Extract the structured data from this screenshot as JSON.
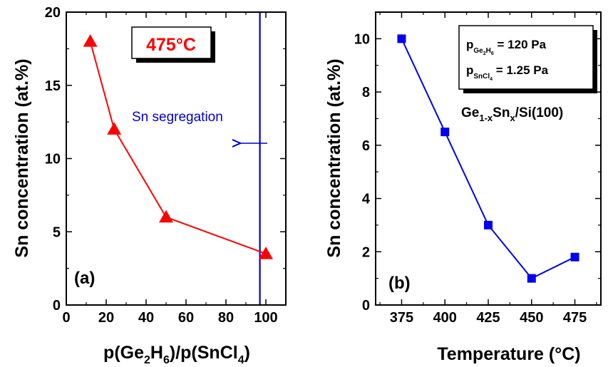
{
  "chart_data": [
    {
      "type": "line",
      "panel_label": "(a)",
      "xlabel": "p(Ge2H6)/p(SnCl4)",
      "ylabel": "Sn concentration (at.%)",
      "xlim": [
        0,
        110
      ],
      "ylim": [
        0,
        20
      ],
      "x_ticks": [
        "0",
        "20",
        "40",
        "60",
        "80",
        "100"
      ],
      "x_tick_values": [
        0,
        20,
        40,
        60,
        80,
        100
      ],
      "y_ticks": [
        "0",
        "5",
        "10",
        "15",
        "20"
      ],
      "y_tick_values": [
        0,
        5,
        10,
        15,
        20
      ],
      "series": [
        {
          "x": [
            12,
            24,
            50,
            100
          ],
          "y": [
            18,
            12,
            6,
            3.5
          ],
          "marker": "triangle",
          "color": "#ff0000"
        }
      ],
      "vertical_line": {
        "x": 97,
        "color": "#0000cc",
        "label": "Sn segregation"
      },
      "annotation_box": {
        "text": "475°C",
        "color": "#ff0000"
      },
      "grid": false
    },
    {
      "type": "line",
      "panel_label": "(b)",
      "xlabel": "Temperature (°C)",
      "ylabel": "Sn concentration (at.%)",
      "xlim": [
        360,
        490
      ],
      "ylim": [
        0,
        11
      ],
      "x_ticks": [
        "375",
        "400",
        "425",
        "450",
        "475"
      ],
      "x_tick_values": [
        375,
        400,
        425,
        450,
        475
      ],
      "y_ticks": [
        "0",
        "2",
        "4",
        "6",
        "8",
        "10"
      ],
      "y_tick_values": [
        0,
        2,
        4,
        6,
        8,
        10
      ],
      "series": [
        {
          "x": [
            375,
            400,
            425,
            450,
            475
          ],
          "y": [
            10,
            6.5,
            3,
            1,
            1.8
          ],
          "marker": "square",
          "color": "#0000ee"
        }
      ],
      "annotation_box": {
        "line1": "pGe2H6 = 120 Pa",
        "line2": "pSnCl4 = 1.25 Pa"
      },
      "annotation_text": "Ge1-xSnx/Si(100)",
      "grid": false
    }
  ]
}
